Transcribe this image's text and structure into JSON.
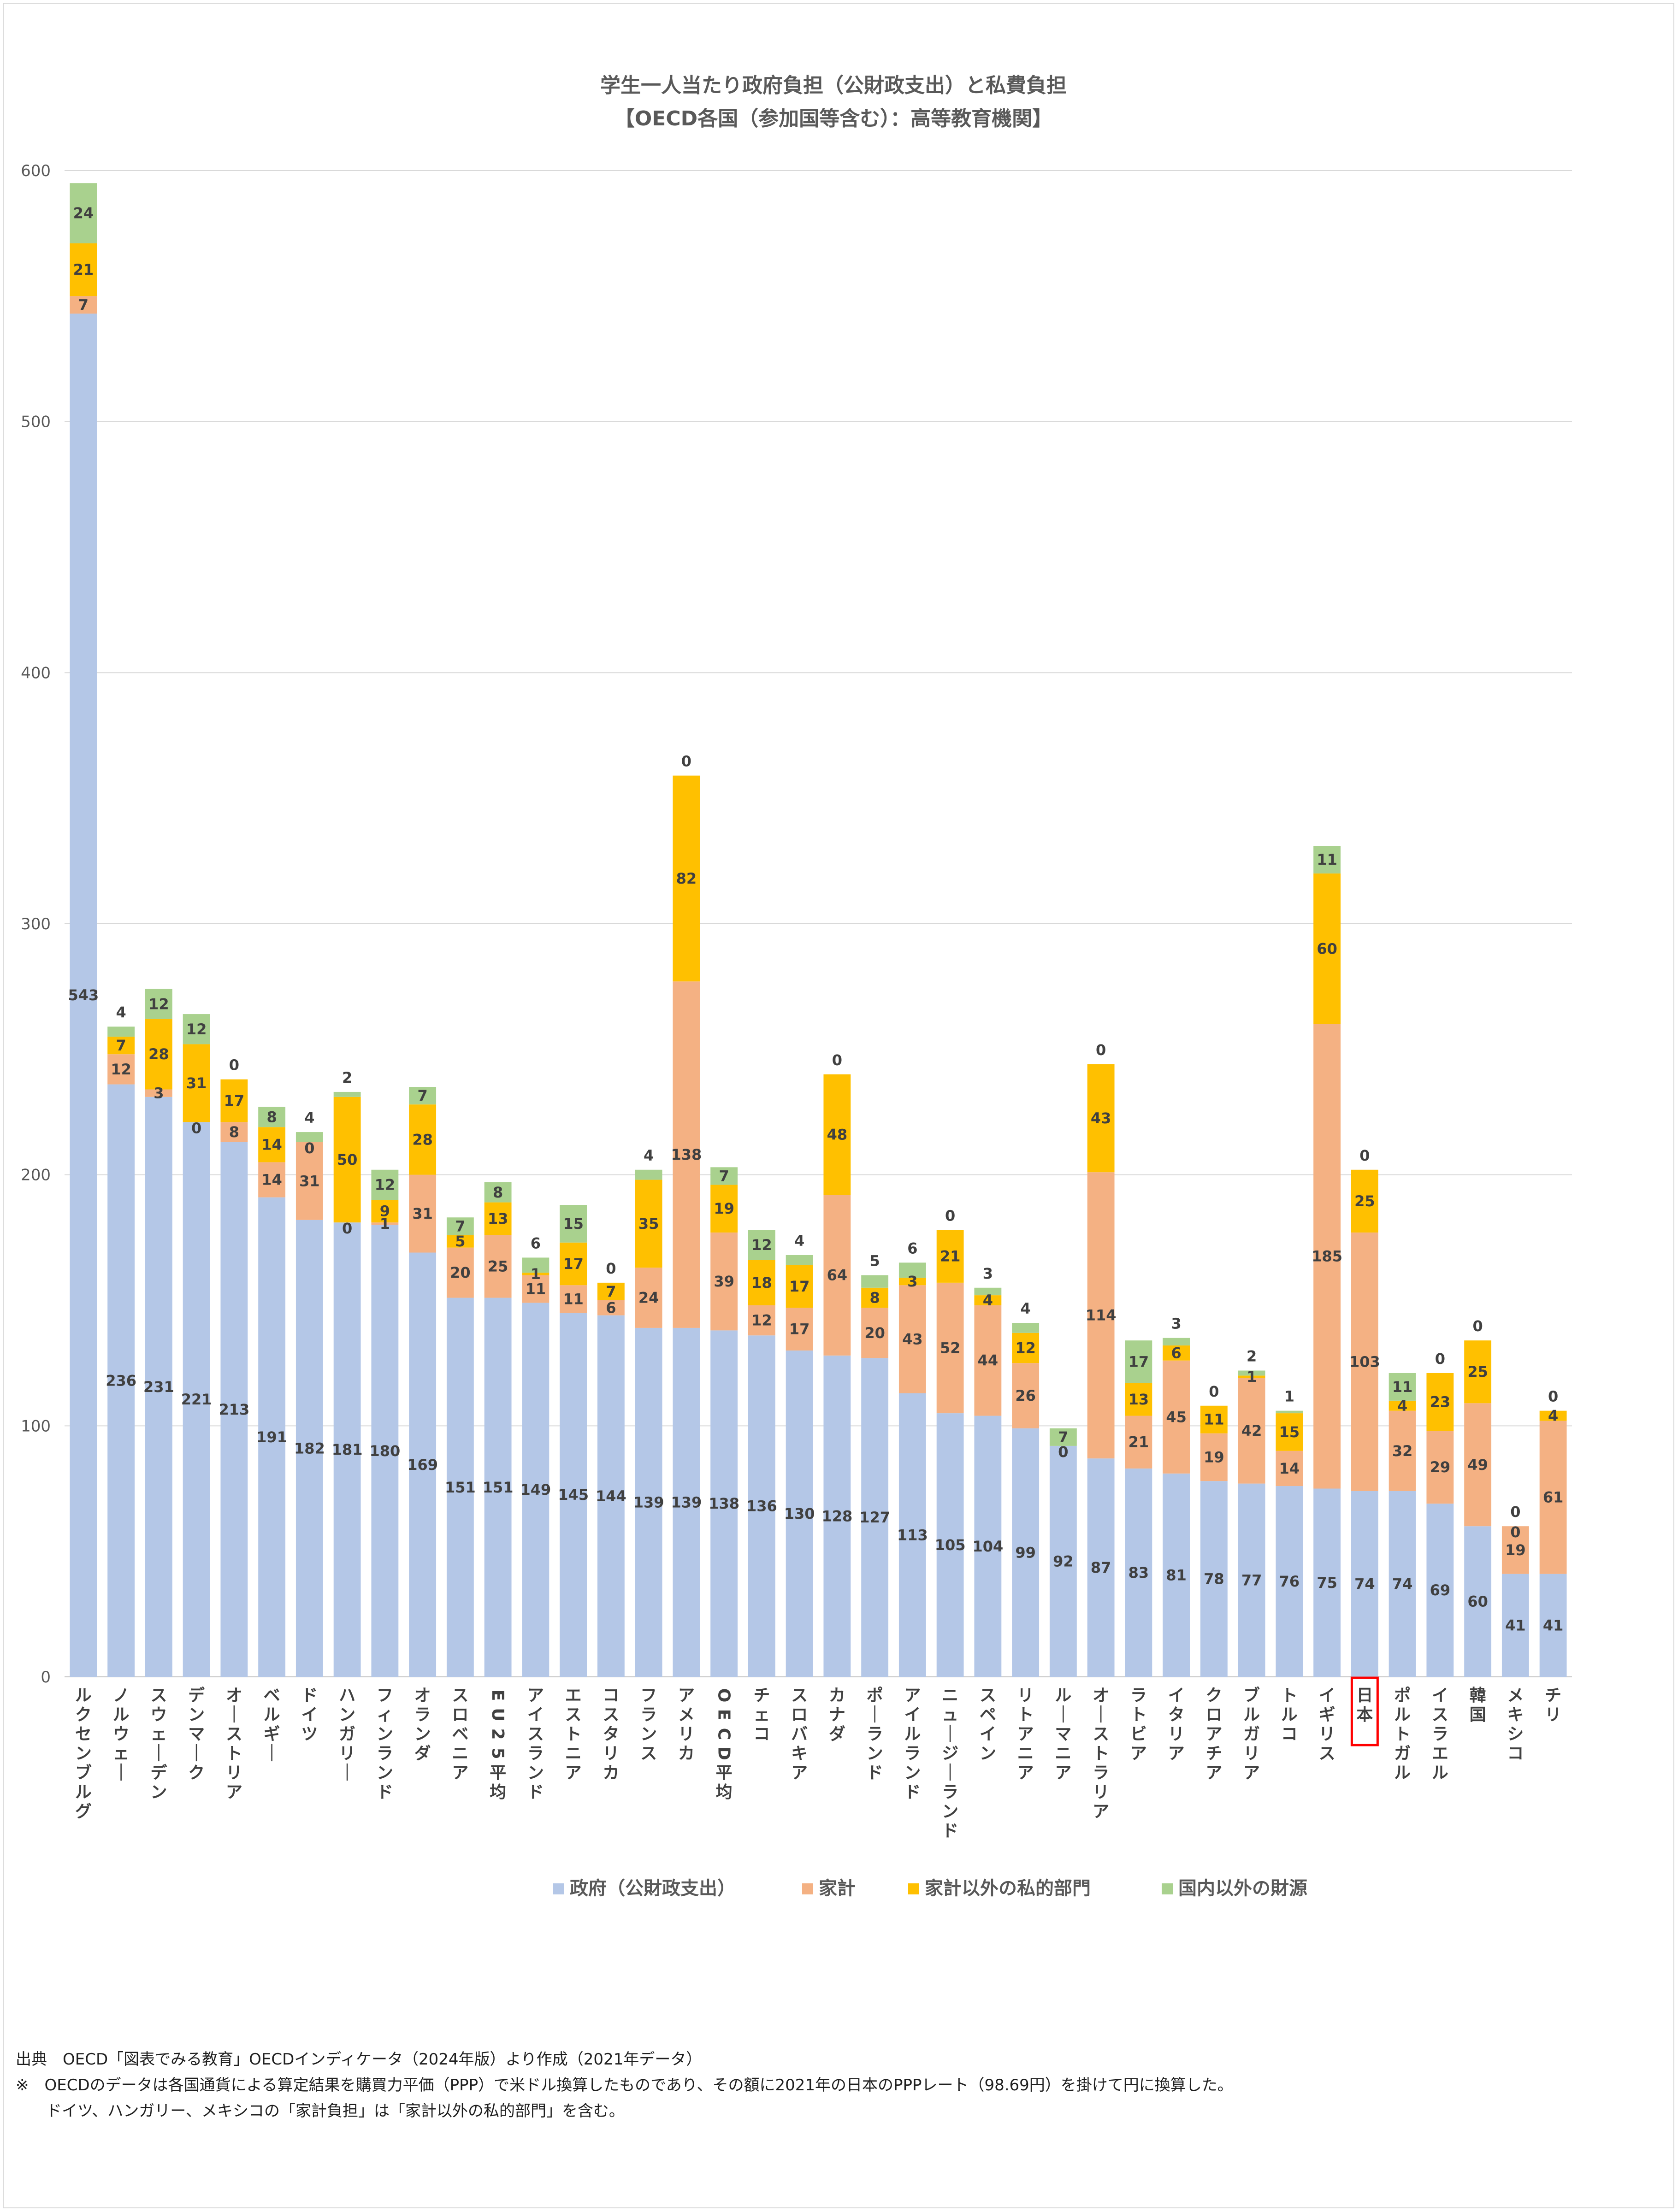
{
  "chart_data": {
    "type": "bar",
    "stacked": true,
    "title": "学生一人当たり政府負担（公財政支出）と私費負担",
    "subtitle": "【OECD各国（参加国等含む）：高等教育機関】",
    "ylim": [
      0,
      600
    ],
    "yticks": [
      0,
      100,
      200,
      300,
      400,
      500,
      600
    ],
    "grid": true,
    "legend_position": "bottom",
    "categories": [
      "ルクセンブルグ",
      "ノルウェー",
      "スウェーデン",
      "デンマーク",
      "オーストリア",
      "ベルギー",
      "ドイツ",
      "ハンガリー",
      "フィンランド",
      "オランダ",
      "スロベニア",
      "EU25平均",
      "アイスランド",
      "エストニア",
      "コスタリカ",
      "フランス",
      "アメリカ",
      "OECD平均",
      "チェコ",
      "スロバキア",
      "カナダ",
      "ポーランド",
      "アイルランド",
      "ニュージーランド",
      "スペイン",
      "リトアニア",
      "ルーマニア",
      "オーストラリア",
      "ラトビア",
      "イタリア",
      "クロアチア",
      "ブルガリア",
      "トルコ",
      "イギリス",
      "日本",
      "ポルトガル",
      "イスラエル",
      "韓国",
      "メキシコ",
      "チリ"
    ],
    "highlight_category": "日本",
    "series": [
      {
        "name": "政府（公財政支出）",
        "color": "#b4c7e7",
        "values": [
          543,
          236,
          231,
          221,
          213,
          191,
          182,
          181,
          180,
          169,
          151,
          151,
          149,
          145,
          144,
          139,
          139,
          138,
          136,
          130,
          128,
          127,
          113,
          105,
          104,
          99,
          92,
          87,
          83,
          81,
          78,
          77,
          76,
          75,
          74,
          74,
          69,
          60,
          41,
          41
        ]
      },
      {
        "name": "家計",
        "color": "#f4b183",
        "values": [
          7,
          12,
          3,
          0,
          8,
          14,
          31,
          0,
          1,
          31,
          20,
          25,
          11,
          11,
          6,
          24,
          138,
          39,
          12,
          17,
          64,
          20,
          43,
          52,
          44,
          26,
          0,
          114,
          21,
          45,
          19,
          42,
          14,
          185,
          103,
          32,
          29,
          49,
          19,
          61
        ]
      },
      {
        "name": "家計以外の私的部門",
        "color": "#ffc000",
        "values": [
          21,
          7,
          28,
          31,
          17,
          14,
          0,
          50,
          9,
          28,
          5,
          13,
          1,
          17,
          7,
          35,
          82,
          19,
          18,
          17,
          48,
          8,
          3,
          21,
          4,
          12,
          0,
          43,
          13,
          6,
          11,
          1,
          15,
          60,
          25,
          4,
          23,
          25,
          0,
          4
        ]
      },
      {
        "name": "国内以外の財源",
        "color": "#a9d18e",
        "values": [
          24,
          4,
          12,
          12,
          0,
          8,
          4,
          2,
          12,
          7,
          7,
          8,
          6,
          15,
          0,
          4,
          0,
          7,
          12,
          4,
          0,
          5,
          6,
          0,
          3,
          4,
          7,
          0,
          17,
          3,
          0,
          2,
          1,
          11,
          0,
          11,
          0,
          0,
          0,
          0
        ]
      }
    ]
  },
  "notes": {
    "line1": "出典　OECD「図表でみる教育」OECDインディケータ（2024年版）より作成（2021年データ）",
    "line2": "※　OECDのデータは各国通貨による算定結果を購買力平価（PPP）で米ドル換算したものであり、その額に2021年の日本のPPPレート（98.69円）を掛けて円に換算した。",
    "line3": "ドイツ、ハンガリー、メキシコの「家計負担」は「家計以外の私的部門」を含む。"
  }
}
